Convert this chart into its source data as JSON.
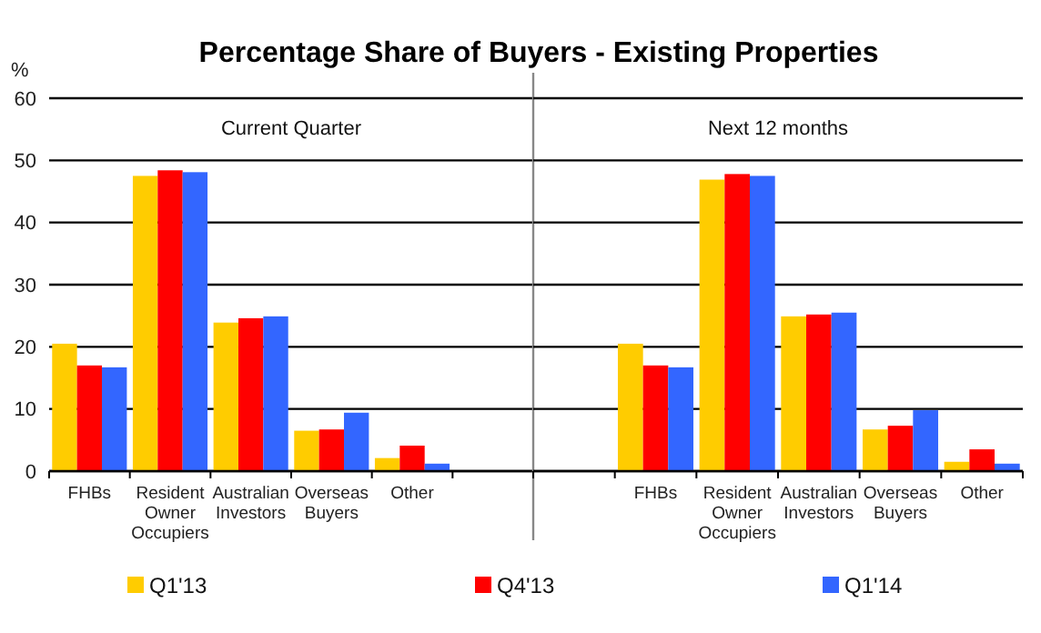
{
  "chart_data": [
    {
      "type": "bar",
      "title": "Percentage Share of Buyers - Existing Properties",
      "subtitle": "Current Quarter",
      "ylabel": "%",
      "categories": [
        "FHBs",
        "Resident Owner Occupiers",
        "Australian Investors",
        "Overseas Buyers",
        "Other",
        null
      ],
      "ylim": [
        0,
        60
      ],
      "yticks": [
        0,
        10,
        20,
        30,
        40,
        50,
        60
      ],
      "grid": "y",
      "legend": "bottom",
      "series": [
        {
          "name": "Q1'13",
          "color": "#ffcc00",
          "values": [
            20.5,
            47.5,
            23.9,
            6.5,
            2.1,
            null
          ]
        },
        {
          "name": "Q4'13",
          "color": "#ff0000",
          "values": [
            17.0,
            48.4,
            24.6,
            6.7,
            4.1,
            null
          ]
        },
        {
          "name": "Q1'14",
          "color": "#3366ff",
          "values": [
            16.7,
            48.1,
            24.9,
            9.4,
            1.2,
            null
          ]
        }
      ]
    },
    {
      "type": "bar",
      "subtitle": "Next 12 months",
      "categories": [
        null,
        "FHBs",
        "Resident Owner Occupiers",
        "Australian Investors",
        "Overseas Buyers",
        "Other"
      ],
      "ylim": [
        0,
        60
      ],
      "yticks": [
        0,
        10,
        20,
        30,
        40,
        50,
        60
      ],
      "grid": "y",
      "tick_labels": "x",
      "series": [
        {
          "color": "#ffcc00",
          "values": [
            null,
            20.5,
            46.9,
            24.9,
            6.7,
            1.5
          ]
        },
        {
          "color": "#ff0000",
          "values": [
            null,
            17.0,
            47.8,
            25.2,
            7.3,
            3.5
          ]
        },
        {
          "color": "#3366ff",
          "values": [
            null,
            16.7,
            47.5,
            25.5,
            9.8,
            1.2
          ]
        }
      ]
    }
  ]
}
